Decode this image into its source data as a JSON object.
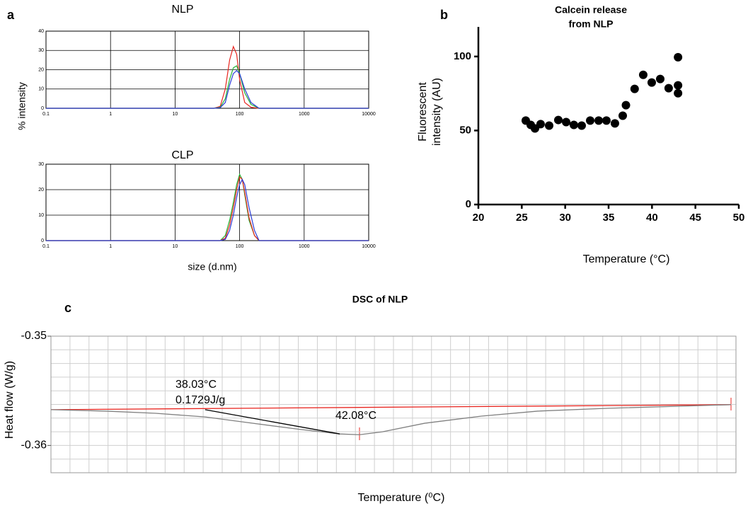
{
  "chart_data": [
    {
      "type": "line",
      "panel": "a",
      "title": "NLP",
      "ylabel": "% intensity",
      "xscale": "log",
      "xlim": [
        0.1,
        10000
      ],
      "xticks": [
        0.1,
        1,
        10,
        100,
        1000,
        10000
      ],
      "ylim": [
        0,
        40
      ],
      "yticks": [
        0,
        10,
        20,
        30,
        40
      ],
      "grid": true,
      "series": [
        {
          "color": "#e8251f",
          "x": [
            0.1,
            40,
            50,
            60,
            70,
            80,
            90,
            100,
            120,
            150,
            200,
            10000
          ],
          "values": [
            0,
            0,
            1,
            10,
            25,
            32,
            28,
            15,
            3,
            0.5,
            0,
            0
          ]
        },
        {
          "color": "#27b336",
          "x": [
            0.1,
            40,
            50,
            60,
            70,
            80,
            90,
            100,
            120,
            150,
            200,
            10000
          ],
          "values": [
            0,
            0,
            0.5,
            5,
            15,
            21,
            22,
            18,
            8,
            2,
            0,
            0
          ]
        },
        {
          "color": "#2a3bd6",
          "x": [
            0.1,
            40,
            50,
            60,
            70,
            80,
            90,
            100,
            120,
            150,
            200,
            10000
          ],
          "values": [
            0,
            0,
            0.3,
            3,
            12,
            18,
            19.5,
            18,
            10,
            3,
            0,
            0
          ]
        }
      ]
    },
    {
      "type": "line",
      "title": "CLP",
      "xlabel": "size (d.nm)",
      "xscale": "log",
      "xlim": [
        0.1,
        10000
      ],
      "xticks": [
        0.1,
        1,
        10,
        100,
        1000,
        10000
      ],
      "ylim": [
        0,
        30
      ],
      "yticks": [
        0,
        10,
        20,
        30
      ],
      "grid": true,
      "series": [
        {
          "color": "#27b336",
          "x": [
            0.1,
            50,
            60,
            70,
            80,
            90,
            100,
            110,
            120,
            140,
            170,
            200,
            10000
          ],
          "values": [
            0,
            0,
            2,
            8,
            15,
            22,
            26,
            24,
            18,
            8,
            2,
            0,
            0
          ]
        },
        {
          "color": "#e8251f",
          "x": [
            0.1,
            50,
            60,
            70,
            80,
            90,
            100,
            110,
            120,
            140,
            170,
            200,
            10000
          ],
          "values": [
            0,
            0,
            1,
            6,
            13,
            20,
            25,
            24,
            19,
            9,
            2,
            0,
            0
          ]
        },
        {
          "color": "#2a3bd6",
          "x": [
            0.1,
            50,
            60,
            70,
            80,
            90,
            100,
            110,
            120,
            140,
            170,
            200,
            10000
          ],
          "values": [
            0,
            0,
            0.5,
            4,
            10,
            17,
            22,
            24,
            22,
            13,
            4,
            0,
            0
          ]
        }
      ]
    },
    {
      "type": "scatter",
      "panel": "b",
      "title": [
        "Calcein release",
        "from NLP"
      ],
      "ylabel": [
        "Fluorescent",
        "intensity (AU)"
      ],
      "xlabel": "Temperature (°C)",
      "xlim": [
        20,
        50
      ],
      "xticks": [
        20,
        25,
        30,
        35,
        40,
        45,
        50
      ],
      "ylim": [
        0,
        120
      ],
      "yticks": [
        0,
        50,
        100
      ],
      "color": "#000000",
      "x": [
        25.46,
        26.03,
        26.52,
        27.17,
        28.15,
        29.21,
        30.11,
        31.0,
        31.9,
        32.88,
        33.86,
        34.75,
        35.73,
        36.63,
        37.0,
        38.0,
        38.99,
        39.97,
        40.95,
        41.92,
        43,
        43,
        43
      ],
      "values": [
        56.7,
        53.8,
        51.4,
        54.3,
        53.3,
        57.1,
        55.7,
        53.8,
        53.3,
        56.7,
        56.7,
        56.7,
        54.8,
        60.0,
        67.1,
        78.1,
        87.6,
        82.4,
        84.8,
        78.6,
        99.5,
        80.5,
        75.2
      ]
    },
    {
      "type": "line",
      "panel": "c",
      "title": "DSC of NLP",
      "ylabel": "Heat flow (W/g)",
      "xlabel": "Temperature (⁰C)",
      "xlim": [
        34,
        52
      ],
      "ylim": [
        -0.3625,
        -0.35
      ],
      "yticks": [
        -0.35,
        -0.36
      ],
      "grid": {
        "x_step": 0.5,
        "y_step": 0.00125
      },
      "annotations": [
        "38.03°C",
        "0.1729J/g",
        "42.08°C"
      ],
      "series": [
        {
          "color": "#e8251f",
          "x": [
            34,
            51.87
          ],
          "values": [
            -0.35673,
            -0.35627
          ]
        },
        {
          "color": "#808080",
          "x": [
            34,
            35.45,
            36.75,
            38.05,
            39.17,
            40.47,
            41.59,
            42.1,
            42.7,
            43.82,
            45.31,
            46.79,
            48.65,
            50.51,
            51.87
          ],
          "values": [
            -0.35673,
            -0.35686,
            -0.35706,
            -0.35739,
            -0.35791,
            -0.3585,
            -0.35895,
            -0.35902,
            -0.35876,
            -0.35797,
            -0.35732,
            -0.35686,
            -0.3566,
            -0.35641,
            -0.35627
          ]
        },
        {
          "color": "#000000",
          "x": [
            38.05,
            41.59
          ],
          "values": [
            -0.35673,
            -0.35895
          ]
        }
      ]
    }
  ]
}
